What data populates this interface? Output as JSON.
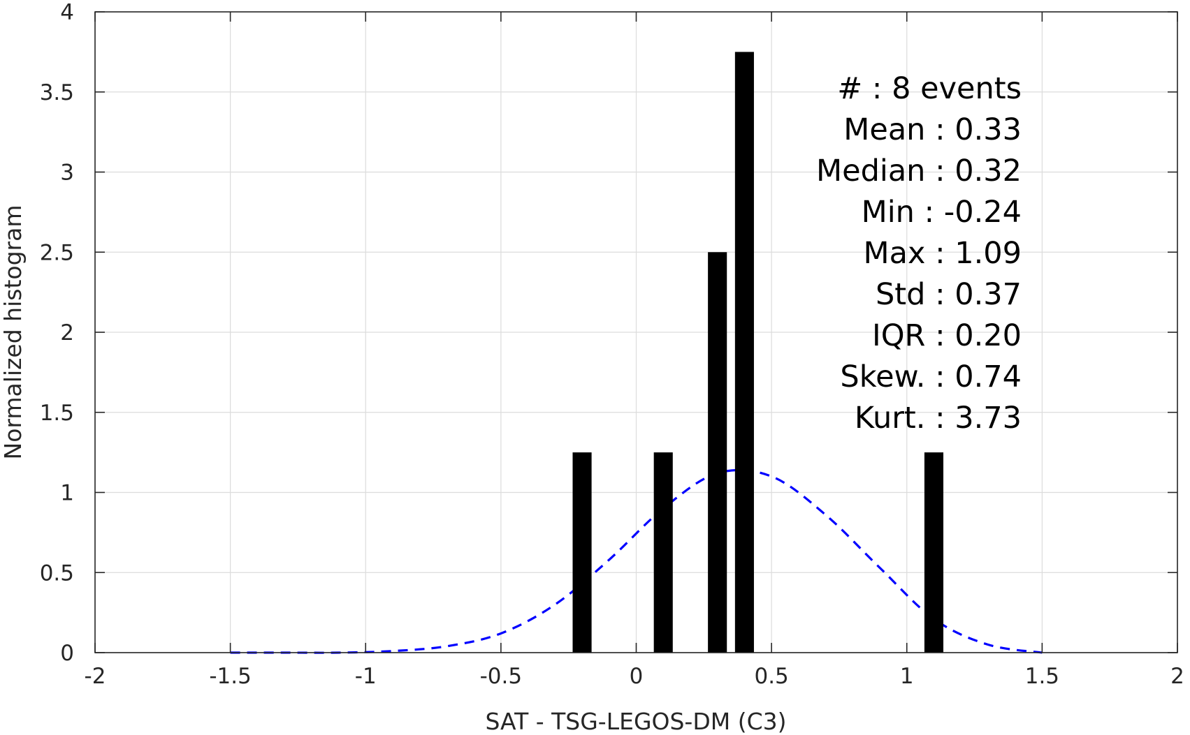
{
  "chart_data": {
    "type": "bar",
    "xlabel": "SAT - TSG-LEGOS-DM (C3)",
    "ylabel": "Normalized histogram",
    "xlim": [
      -2,
      2
    ],
    "ylim": [
      0,
      4
    ],
    "xticks": [
      "-2",
      "-1.5",
      "-1",
      "-0.5",
      "0",
      "0.5",
      "1",
      "1.5",
      "2"
    ],
    "yticks": [
      "0",
      "0.5",
      "1",
      "1.5",
      "2",
      "2.5",
      "3",
      "3.5",
      "4"
    ],
    "grid": true,
    "bars": [
      {
        "x": -0.2,
        "value": 1.25
      },
      {
        "x": 0.1,
        "value": 1.25
      },
      {
        "x": 0.3,
        "value": 2.5
      },
      {
        "x": 0.4,
        "value": 3.75
      },
      {
        "x": 1.1,
        "value": 1.25
      }
    ],
    "fit_curve": {
      "style": "dashed",
      "color": "#0000ff",
      "x": [
        -1.5,
        -1.3,
        -1.1,
        -0.9,
        -0.7,
        -0.5,
        -0.3,
        -0.1,
        0.1,
        0.3,
        0.5,
        0.7,
        0.9,
        1.1,
        1.3,
        1.5
      ],
      "y": [
        0.0,
        0.0,
        0.0,
        0.01,
        0.04,
        0.12,
        0.3,
        0.58,
        0.9,
        1.12,
        1.1,
        0.86,
        0.53,
        0.21,
        0.05,
        0.0
      ]
    },
    "bar_color": "#000000",
    "stats": [
      "#  : 8 events",
      "Mean : 0.33",
      "Median : 0.32",
      "Min : -0.24",
      "Max : 1.09",
      "Std : 0.37",
      "IQR : 0.20",
      "Skew. : 0.74",
      "Kurt. : 3.73"
    ]
  }
}
